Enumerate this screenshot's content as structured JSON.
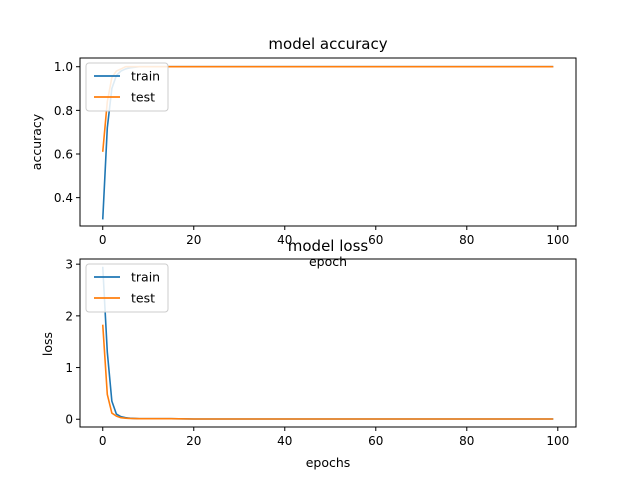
{
  "chart_data": [
    {
      "type": "line",
      "title": "model accuracy",
      "xlabel": "epoch",
      "ylabel": "accuracy",
      "xlim": [
        -5,
        104
      ],
      "ylim": [
        0.27,
        1.04
      ],
      "xticks": [
        0,
        20,
        40,
        60,
        80,
        100
      ],
      "yticks": [
        0.4,
        0.6,
        0.8,
        1.0
      ],
      "xtick_labels": [
        "0",
        "20",
        "40",
        "60",
        "80",
        "100"
      ],
      "ytick_labels": [
        "0.4",
        "0.6",
        "0.8",
        "1.0"
      ],
      "legend": "upper-left",
      "grid": false,
      "series": [
        {
          "name": "train",
          "color": "#1f77b4",
          "x": [
            0,
            1,
            2,
            3,
            4,
            5,
            6,
            8,
            10,
            15,
            20,
            30,
            40,
            50,
            60,
            70,
            80,
            90,
            99
          ],
          "y": [
            0.3,
            0.72,
            0.9,
            0.96,
            0.98,
            0.99,
            0.995,
            1.0,
            1.0,
            1.0,
            1.0,
            1.0,
            1.0,
            1.0,
            1.0,
            1.0,
            1.0,
            1.0,
            1.0
          ]
        },
        {
          "name": "test",
          "color": "#ff7f0e",
          "x": [
            0,
            1,
            2,
            3,
            4,
            5,
            6,
            8,
            10,
            15,
            20,
            30,
            40,
            50,
            60,
            70,
            80,
            90,
            99
          ],
          "y": [
            0.61,
            0.84,
            0.95,
            0.98,
            0.99,
            1.0,
            1.0,
            1.0,
            1.0,
            1.0,
            1.0,
            1.0,
            1.0,
            1.0,
            1.0,
            1.0,
            1.0,
            1.0,
            1.0
          ]
        }
      ]
    },
    {
      "type": "line",
      "title": "model loss",
      "xlabel": "epochs",
      "ylabel": "loss",
      "xlim": [
        -5,
        104
      ],
      "ylim": [
        -0.15,
        3.1
      ],
      "xticks": [
        0,
        20,
        40,
        60,
        80,
        100
      ],
      "yticks": [
        0,
        1,
        2,
        3
      ],
      "xtick_labels": [
        "0",
        "20",
        "40",
        "60",
        "80",
        "100"
      ],
      "ytick_labels": [
        "0",
        "1",
        "2",
        "3"
      ],
      "legend": "upper-left",
      "grid": false,
      "series": [
        {
          "name": "train",
          "color": "#1f77b4",
          "x": [
            0,
            1,
            2,
            3,
            4,
            5,
            6,
            8,
            10,
            15,
            20,
            30,
            40,
            50,
            60,
            70,
            80,
            90,
            99
          ],
          "y": [
            2.95,
            1.3,
            0.35,
            0.1,
            0.05,
            0.03,
            0.02,
            0.01,
            0.01,
            0.01,
            0.005,
            0.005,
            0.005,
            0.005,
            0.005,
            0.005,
            0.005,
            0.005,
            0.005
          ]
        },
        {
          "name": "test",
          "color": "#ff7f0e",
          "x": [
            0,
            1,
            2,
            3,
            4,
            5,
            6,
            8,
            10,
            15,
            20,
            30,
            40,
            50,
            60,
            70,
            80,
            90,
            99
          ],
          "y": [
            1.83,
            0.48,
            0.12,
            0.06,
            0.03,
            0.02,
            0.015,
            0.01,
            0.01,
            0.01,
            0.005,
            0.005,
            0.005,
            0.005,
            0.005,
            0.005,
            0.005,
            0.005,
            0.005
          ]
        }
      ]
    }
  ]
}
